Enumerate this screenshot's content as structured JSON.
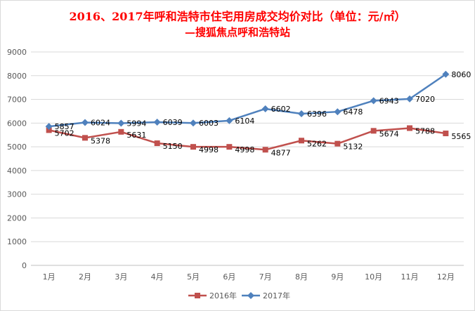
{
  "chart_data": {
    "type": "line",
    "title": "2016、2017年呼和浩特市住宅用房成交均价对比（单位：元/㎡）",
    "subtitle": "—搜狐焦点呼和浩特站",
    "categories": [
      "1月",
      "2月",
      "3月",
      "4月",
      "5月",
      "6月",
      "7月",
      "8月",
      "9月",
      "10月",
      "11月",
      "12月"
    ],
    "series": [
      {
        "name": "2016年",
        "color": "#c0504d",
        "marker": "square",
        "values": [
          5702,
          5378,
          5631,
          5150,
          4998,
          4998,
          4877,
          5262,
          5132,
          5674,
          5788,
          5565
        ]
      },
      {
        "name": "2017年",
        "color": "#4f81bd",
        "marker": "diamond",
        "values": [
          5857,
          6024,
          5994,
          6039,
          6003,
          6104,
          6602,
          6396,
          6478,
          6943,
          7020,
          8060
        ]
      }
    ],
    "yticks": [
      0,
      1000,
      2000,
      3000,
      4000,
      5000,
      6000,
      7000,
      8000,
      9000
    ],
    "ylim": [
      0,
      9000
    ],
    "grid": true,
    "legend": "bottom"
  }
}
